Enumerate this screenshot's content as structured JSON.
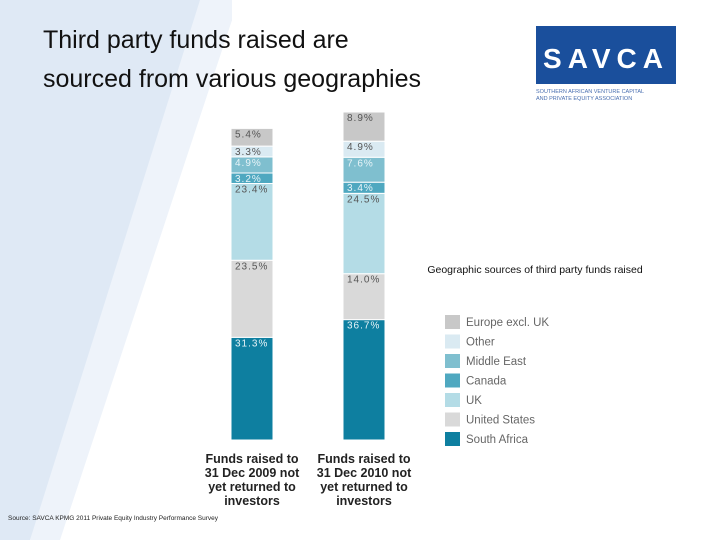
{
  "chart_data": {
    "type": "stacked-bar",
    "title": [
      "Third party funds raised are",
      "sourced from various geographies"
    ],
    "legend_title": "Geographic sources of third party funds raised",
    "source": "Source: SAVCA KPMG 2011 Private Equity Industry Performance Survey",
    "logo": {
      "name": "SAVCA",
      "subtitle": [
        "SOUTHERN AFRICAN VENTURE CAPITAL",
        "AND PRIVATE EQUITY ASSOCIATION"
      ]
    },
    "categories": [
      "Funds raised to 31 Dec 2009 not yet returned to investors",
      "Funds raised to 31 Dec 2010 not yet returned to investors"
    ],
    "series": [
      {
        "name": "South Africa",
        "color": "#0e7fa0",
        "values": [
          31.3,
          36.7
        ],
        "value_labels": [
          "31.3%",
          "36.7%"
        ]
      },
      {
        "name": "United States",
        "color": "#d9d9d9",
        "values": [
          23.5,
          14.0
        ],
        "value_labels": [
          "23.5%",
          "14.0%"
        ]
      },
      {
        "name": "UK",
        "color": "#b4dce6",
        "values": [
          23.4,
          24.5
        ],
        "value_labels": [
          "23.4%",
          "24.5%"
        ]
      },
      {
        "name": "Canada",
        "color": "#4fa8c0",
        "values": [
          3.2,
          3.4
        ],
        "value_labels": [
          "3.2%",
          "3.4%"
        ]
      },
      {
        "name": "Middle East",
        "color": "#7fbfcf",
        "values": [
          4.9,
          7.6
        ],
        "value_labels": [
          "4.9%",
          "7.6%"
        ]
      },
      {
        "name": "Other",
        "color": "#daeaf2",
        "values": [
          3.3,
          4.9
        ],
        "value_labels": [
          "3.3%",
          "4.9%"
        ]
      },
      {
        "name": "Europe excl. UK",
        "color": "#c8c8c8",
        "values": [
          5.4,
          8.9
        ],
        "value_labels": [
          "5.4%",
          "8.9%"
        ]
      }
    ]
  }
}
